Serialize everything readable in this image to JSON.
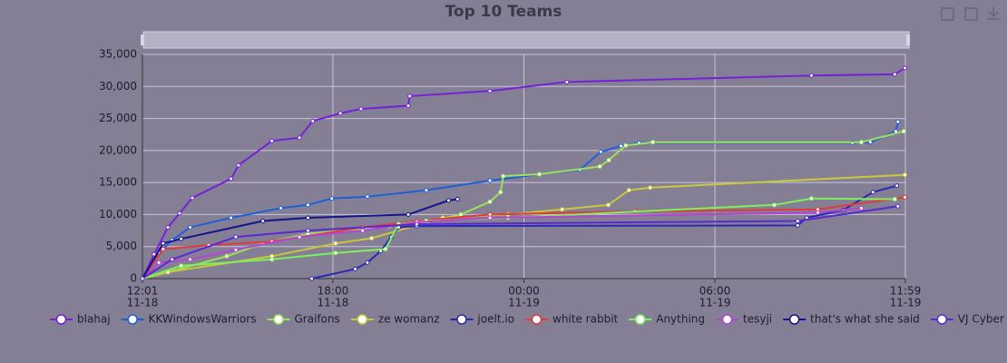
{
  "chart_data": {
    "type": "line",
    "title": "Top 10 Teams",
    "xlim": [
      "11-18 12:01",
      "11-19 11:59"
    ],
    "xticks": [
      {
        "value": "11-18 12:01",
        "label": [
          "12:01",
          "11-18"
        ]
      },
      {
        "value": "11-18 18:00",
        "label": [
          "18:00",
          "11-18"
        ]
      },
      {
        "value": "11-19 00:00",
        "label": [
          "00:00",
          "11-19"
        ]
      },
      {
        "value": "11-19 06:00",
        "label": [
          "06:00",
          "11-19"
        ]
      },
      {
        "value": "11-19 11:59",
        "label": [
          "11:59",
          "11-19"
        ]
      }
    ],
    "ylim": [
      0,
      35000
    ],
    "yticks": [
      0,
      {
        "value": 5000,
        "label": "5,000"
      },
      {
        "value": 10000,
        "label": "10,000"
      },
      {
        "value": 15000,
        "label": "15,000"
      },
      {
        "value": 20000,
        "label": "20,000"
      },
      {
        "value": 25000,
        "label": "25,000"
      },
      {
        "value": 30000,
        "label": "30,000"
      },
      {
        "value": 35000,
        "label": "35,000"
      }
    ],
    "grid": true,
    "legend": "bottom",
    "series": [
      {
        "name": "blahaj",
        "color": "#7421d8",
        "x": [
          "11-18 12:01",
          "11-18 12:23",
          "11-18 12:49",
          "11-18 13:11",
          "11-18 13:35",
          "11-18 14:48",
          "11-18 15:02",
          "11-18 16:05",
          "11-18 16:57",
          "11-18 17:22",
          "11-18 18:14",
          "11-18 18:53",
          "11-18 20:22",
          "11-18 20:25",
          "11-18 22:56",
          "11-19 01:21",
          "11-19 09:02",
          "11-19 11:39",
          "11-19 11:58"
        ],
        "values": [
          0,
          3800,
          8000,
          10200,
          12600,
          15600,
          17700,
          21500,
          22000,
          24600,
          25800,
          26500,
          27000,
          28500,
          29300,
          30700,
          31700,
          31900,
          32900
        ]
      },
      {
        "name": "KKWindowsWarriors",
        "color": "#1f5fd6",
        "x": [
          "11-18 12:01",
          "11-18 12:32",
          "11-18 12:57",
          "11-18 13:31",
          "11-18 14:48",
          "11-18 16:22",
          "11-18 17:13",
          "11-18 17:58",
          "11-18 19:05",
          "11-18 20:56",
          "11-18 22:56",
          "11-19 00:29",
          "11-19 01:46",
          "11-19 02:25",
          "11-19 03:03",
          "11-19 03:37",
          "11-19 10:19",
          "11-19 10:53",
          "11-19 11:41",
          "11-19 11:45"
        ],
        "values": [
          0,
          4000,
          6000,
          8000,
          9500,
          11000,
          11500,
          12500,
          12800,
          13800,
          15300,
          16300,
          17000,
          19800,
          20700,
          21200,
          21200,
          21300,
          23000,
          24500
        ]
      },
      {
        "name": "Graifons",
        "color": "#9be35a",
        "x": [
          "11-18 12:01",
          "11-18 12:49",
          "11-18 14:40",
          "11-18 15:48",
          "11-18 17:13",
          "11-18 19:47",
          "11-18 20:56",
          "11-18 22:01",
          "11-18 22:56",
          "11-18 23:16",
          "11-18 23:21",
          "11-19 00:29",
          "11-19 02:23",
          "11-19 02:40",
          "11-19 03:12",
          "11-19 04:03",
          "11-19 10:36",
          "11-19 11:56"
        ],
        "values": [
          0,
          1000,
          3500,
          5500,
          7000,
          8200,
          8800,
          10000,
          12000,
          13500,
          16000,
          16300,
          17500,
          18500,
          20800,
          21300,
          21300,
          23000
        ]
      },
      {
        "name": "ze womanz",
        "color": "#c9c83c",
        "x": [
          "11-18 12:01",
          "11-18 12:49",
          "11-18 16:05",
          "11-18 18:05",
          "11-18 19:13",
          "11-18 21:27",
          "11-18 23:30",
          "11-19 01:12",
          "11-19 02:39",
          "11-19 03:18",
          "11-19 03:58",
          "11-19 11:58"
        ],
        "values": [
          0,
          1000,
          3500,
          5500,
          6300,
          9500,
          10000,
          10800,
          11500,
          13800,
          14200,
          16200
        ]
      },
      {
        "name": "joelt.io",
        "color": "#2a2ab0",
        "x": [
          "11-18 17:20",
          "11-18 18:42",
          "11-18 19:05",
          "11-18 19:30",
          "11-18 19:50",
          "11-18 20:04",
          "11-18 20:38",
          "11-19 08:36",
          "11-19 08:53",
          "11-19 10:02",
          "11-19 10:58",
          "11-19 11:43"
        ],
        "values": [
          0,
          1500,
          2500,
          4300,
          6500,
          8000,
          8200,
          8300,
          9500,
          10700,
          13500,
          14500
        ]
      },
      {
        "name": "white rabbit",
        "color": "#e03a3a",
        "x": [
          "11-18 12:01",
          "11-18 12:40",
          "11-18 14:06",
          "11-18 16:05",
          "11-18 18:56",
          "11-18 20:38",
          "11-18 22:56",
          "11-19 03:29",
          "11-19 09:14",
          "11-19 11:58"
        ],
        "values": [
          0,
          4600,
          5200,
          5800,
          8000,
          9000,
          10000,
          10500,
          10800,
          12700
        ]
      },
      {
        "name": "Anything",
        "color": "#7ef05a",
        "x": [
          "11-18 12:01",
          "11-18 13:14",
          "11-18 16:05",
          "11-18 18:05",
          "11-18 19:39",
          "11-18 20:04",
          "11-18 20:56",
          "11-18 23:30",
          "11-19 07:52",
          "11-19 09:02",
          "11-19 11:39"
        ],
        "values": [
          0,
          2000,
          3000,
          4000,
          4600,
          8500,
          9000,
          9500,
          11500,
          12500,
          12400
        ]
      },
      {
        "name": "tesyji",
        "color": "#b444d4",
        "x": [
          "11-18 12:01",
          "11-18 12:32",
          "11-18 13:31",
          "11-18 14:57",
          "11-18 16:57",
          "11-18 18:56",
          "11-18 20:38",
          "11-18 22:56",
          "11-19 09:14",
          "11-19 10:36"
        ],
        "values": [
          0,
          2500,
          3000,
          4500,
          6500,
          7500,
          8800,
          9500,
          10300,
          11000
        ]
      },
      {
        "name": "that's what she said",
        "color": "#14148c",
        "x": [
          "11-18 12:01",
          "11-18 12:40",
          "11-18 13:14",
          "11-18 15:48",
          "11-18 17:13",
          "11-18 20:22",
          "11-18 21:38",
          "11-18 21:55"
        ],
        "values": [
          0,
          5500,
          6200,
          9000,
          9500,
          10000,
          12200,
          12400
        ]
      },
      {
        "name": "VJ Cyber",
        "color": "#5a2ad0",
        "x": [
          "11-18 12:01",
          "11-18 12:57",
          "11-18 14:57",
          "11-18 17:13",
          "11-18 20:38",
          "11-19 08:36",
          "11-19 11:45"
        ],
        "values": [
          0,
          3000,
          6500,
          7500,
          8500,
          9000,
          11300
        ]
      }
    ]
  }
}
